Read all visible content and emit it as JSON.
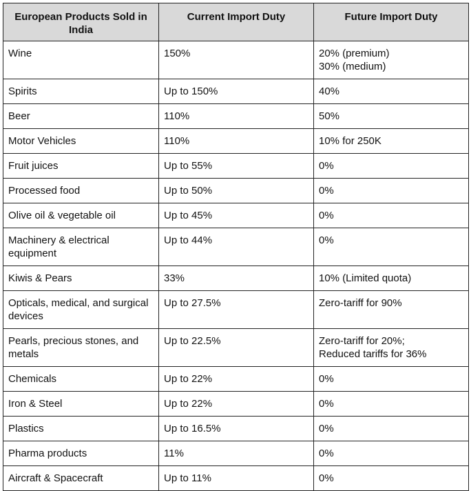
{
  "table": {
    "headers": [
      "European Products Sold in India",
      "Current Import Duty",
      "Future Import Duty"
    ],
    "rows": [
      {
        "product": "Wine",
        "current": "150%",
        "future": [
          "20% (premium)",
          "30% (medium)"
        ]
      },
      {
        "product": "Spirits",
        "current": "Up to 150%",
        "future": [
          "40%"
        ]
      },
      {
        "product": "Beer",
        "current": "110%",
        "future": [
          "50%"
        ]
      },
      {
        "product": "Motor Vehicles",
        "current": "110%",
        "future": [
          "10% for 250K"
        ]
      },
      {
        "product": "Fruit juices",
        "current": "Up to 55%",
        "future": [
          "0%"
        ]
      },
      {
        "product": "Processed food",
        "current": "Up to 50%",
        "future": [
          "0%"
        ]
      },
      {
        "product": "Olive oil & vegetable oil",
        "current": "Up to 45%",
        "future": [
          "0%"
        ]
      },
      {
        "product": "Machinery & electrical equipment",
        "current": "Up to 44%",
        "future": [
          "0%"
        ]
      },
      {
        "product": "Kiwis & Pears",
        "current": "33%",
        "future": [
          "10% (Limited quota)"
        ]
      },
      {
        "product": "Opticals, medical, and surgical devices",
        "current": "Up to 27.5%",
        "future": [
          "Zero-tariff for 90%"
        ]
      },
      {
        "product": "Pearls, precious stones, and metals",
        "current": "Up to 22.5%",
        "future": [
          "Zero-tariff for 20%;",
          "Reduced tariffs for 36%"
        ]
      },
      {
        "product": "Chemicals",
        "current": "Up to 22%",
        "future": [
          "0%"
        ]
      },
      {
        "product": "Iron & Steel",
        "current": "Up to 22%",
        "future": [
          "0%"
        ]
      },
      {
        "product": "Plastics",
        "current": "Up to 16.5%",
        "future": [
          "0%"
        ]
      },
      {
        "product": "Pharma products",
        "current": "11%",
        "future": [
          "0%"
        ]
      },
      {
        "product": "Aircraft & Spacecraft",
        "current": "Up to 11%",
        "future": [
          "0%"
        ]
      }
    ]
  },
  "colors": {
    "header_bg": "#d9d9d9",
    "border": "#222222",
    "text": "#111111"
  }
}
